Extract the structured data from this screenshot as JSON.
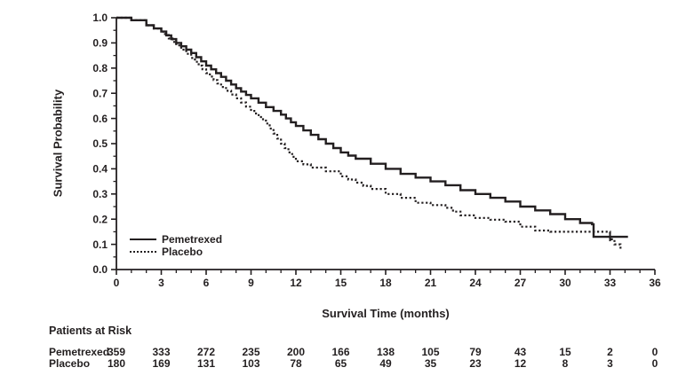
{
  "chart_data": {
    "type": "line",
    "subtype": "kaplan-meier-step",
    "title": "",
    "xlabel": "Survival Time (months)",
    "ylabel": "Survival Probability",
    "xlim": [
      0,
      36
    ],
    "ylim": [
      0.0,
      1.0
    ],
    "x_tick_labels": [
      "0",
      "3",
      "6",
      "9",
      "12",
      "15",
      "18",
      "21",
      "24",
      "27",
      "30",
      "33",
      "36"
    ],
    "x_minor_tick_step": 1,
    "y_tick_labels": [
      "0.0",
      "0.1",
      "0.2",
      "0.3",
      "0.4",
      "0.5",
      "0.6",
      "0.7",
      "0.8",
      "0.9",
      "1.0"
    ],
    "y_minor_tick_step": 0.05,
    "grid": false,
    "legend_position": "lower-left-inside",
    "line_color": "#231f20",
    "series": [
      {
        "name": "Pemetrexed",
        "style": "solid",
        "points": [
          [
            0,
            1.0
          ],
          [
            1,
            0.99
          ],
          [
            2,
            0.97
          ],
          [
            3,
            0.945
          ],
          [
            4,
            0.9
          ],
          [
            5,
            0.86
          ],
          [
            6,
            0.81
          ],
          [
            7,
            0.765
          ],
          [
            8,
            0.72
          ],
          [
            9,
            0.68
          ],
          [
            10,
            0.645
          ],
          [
            11,
            0.615
          ],
          [
            12,
            0.57
          ],
          [
            13,
            0.535
          ],
          [
            14,
            0.5
          ],
          [
            15,
            0.465
          ],
          [
            16,
            0.44
          ],
          [
            17,
            0.42
          ],
          [
            18,
            0.4
          ],
          [
            19,
            0.38
          ],
          [
            20,
            0.365
          ],
          [
            21,
            0.35
          ],
          [
            22,
            0.335
          ],
          [
            23,
            0.315
          ],
          [
            24,
            0.3
          ],
          [
            25,
            0.285
          ],
          [
            26,
            0.27
          ],
          [
            27,
            0.25
          ],
          [
            28,
            0.235
          ],
          [
            29,
            0.22
          ],
          [
            30,
            0.2
          ],
          [
            31,
            0.185
          ],
          [
            31.8,
            0.18
          ],
          [
            31.9,
            0.13
          ],
          [
            34.2,
            0.13
          ]
        ]
      },
      {
        "name": "Placebo",
        "style": "dotted",
        "points": [
          [
            0,
            1.0
          ],
          [
            1,
            0.99
          ],
          [
            2,
            0.97
          ],
          [
            3,
            0.945
          ],
          [
            4,
            0.89
          ],
          [
            5,
            0.84
          ],
          [
            6,
            0.78
          ],
          [
            7,
            0.725
          ],
          [
            8,
            0.68
          ],
          [
            9,
            0.63
          ],
          [
            10,
            0.58
          ],
          [
            11,
            0.5
          ],
          [
            12,
            0.43
          ],
          [
            13,
            0.405
          ],
          [
            14,
            0.39
          ],
          [
            15,
            0.37
          ],
          [
            16,
            0.345
          ],
          [
            17,
            0.32
          ],
          [
            18,
            0.3
          ],
          [
            19,
            0.285
          ],
          [
            20,
            0.265
          ],
          [
            21,
            0.256
          ],
          [
            22,
            0.245
          ],
          [
            23,
            0.215
          ],
          [
            24,
            0.205
          ],
          [
            25,
            0.198
          ],
          [
            26,
            0.19
          ],
          [
            27,
            0.17
          ],
          [
            28,
            0.155
          ],
          [
            29,
            0.15
          ],
          [
            32.6,
            0.15
          ],
          [
            33,
            0.12
          ],
          [
            33.3,
            0.1
          ],
          [
            33.7,
            0.08
          ]
        ]
      }
    ],
    "censor_marks": [
      {
        "series": "Pemetrexed",
        "x": 33,
        "y": 0.13
      }
    ]
  },
  "risk_table": {
    "title": "Patients at Risk",
    "time_points": [
      0,
      3,
      6,
      9,
      12,
      15,
      18,
      21,
      24,
      27,
      30,
      33,
      36
    ],
    "rows": [
      {
        "label": "Pemetrexed",
        "counts": [
          359,
          333,
          272,
          235,
          200,
          166,
          138,
          105,
          79,
          43,
          15,
          2,
          0
        ]
      },
      {
        "label": "Placebo",
        "counts": [
          180,
          169,
          131,
          103,
          78,
          65,
          49,
          35,
          23,
          12,
          8,
          3,
          0
        ]
      }
    ]
  }
}
